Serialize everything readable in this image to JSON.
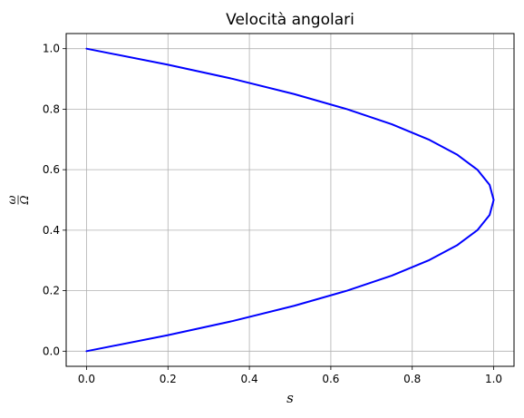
{
  "chart_data": {
    "type": "line",
    "title": "Velocità angolari",
    "xlabel": "s",
    "ylabel": {
      "numerator": "ω",
      "denominator": "Ω"
    },
    "xlim": [
      -0.05,
      1.05
    ],
    "ylim": [
      -0.05,
      1.05
    ],
    "xticks": [
      "0.0",
      "0.2",
      "0.4",
      "0.6",
      "0.8",
      "1.0"
    ],
    "yticks": [
      "0.0",
      "0.2",
      "0.4",
      "0.6",
      "0.8",
      "1.0"
    ],
    "grid": true,
    "series": [
      {
        "color": "#0000ff",
        "x": [
          0.0,
          0.2,
          0.36,
          0.51,
          0.64,
          0.75,
          0.84,
          0.91,
          0.96,
          0.99,
          1.0,
          0.99,
          0.96,
          0.91,
          0.84,
          0.75,
          0.64,
          0.51,
          0.36,
          0.2,
          0.0
        ],
        "y": [
          0.0,
          0.053,
          0.1,
          0.15,
          0.2,
          0.25,
          0.3,
          0.35,
          0.4,
          0.45,
          0.5,
          0.55,
          0.6,
          0.65,
          0.7,
          0.75,
          0.8,
          0.85,
          0.9,
          0.947,
          1.0
        ]
      }
    ]
  }
}
